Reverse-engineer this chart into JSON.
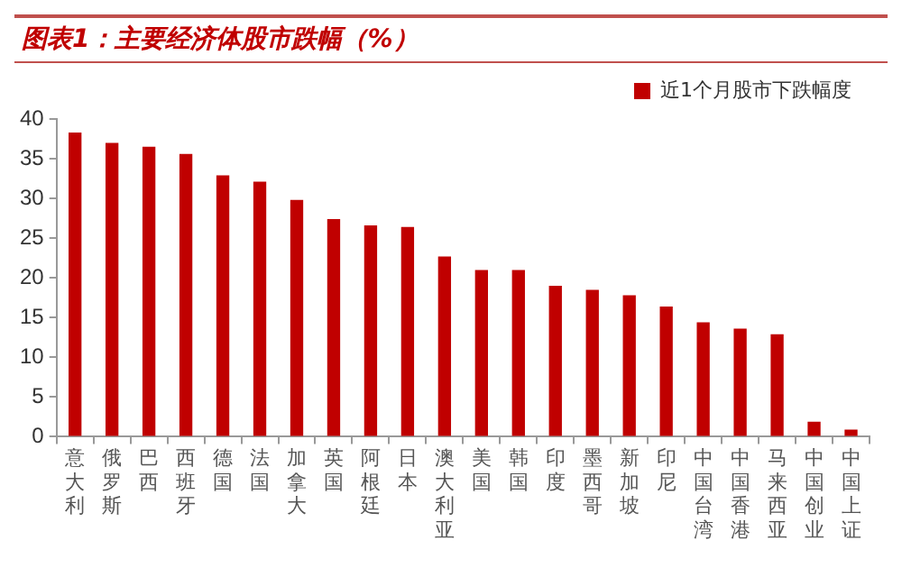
{
  "chart_data": {
    "type": "bar",
    "title": "图表1：主要经济体股市跌幅（%）",
    "categories": [
      "意大利",
      "俄罗斯",
      "巴西",
      "西班牙",
      "德国",
      "法国",
      "加拿大",
      "英国",
      "阿根廷",
      "日本",
      "澳大利亚",
      "美国",
      "韩国",
      "印度",
      "墨西哥",
      "新加坡",
      "印尼",
      "中国台湾",
      "中国香港",
      "马来西亚",
      "中国创业",
      "中国上证"
    ],
    "series": [
      {
        "name": "近1个月股市下跌幅度",
        "color": "#c00000",
        "values": [
          38.3,
          37.0,
          36.5,
          35.6,
          32.9,
          32.1,
          29.8,
          27.4,
          26.6,
          26.4,
          22.7,
          21.0,
          21.0,
          19.0,
          18.5,
          17.8,
          16.4,
          14.4,
          13.6,
          12.9,
          1.9,
          0.9
        ]
      }
    ],
    "ylim": [
      0,
      40
    ],
    "yticks": [
      0,
      5,
      10,
      15,
      20,
      25,
      30,
      35,
      40
    ],
    "grid": false,
    "legend": "top right"
  }
}
